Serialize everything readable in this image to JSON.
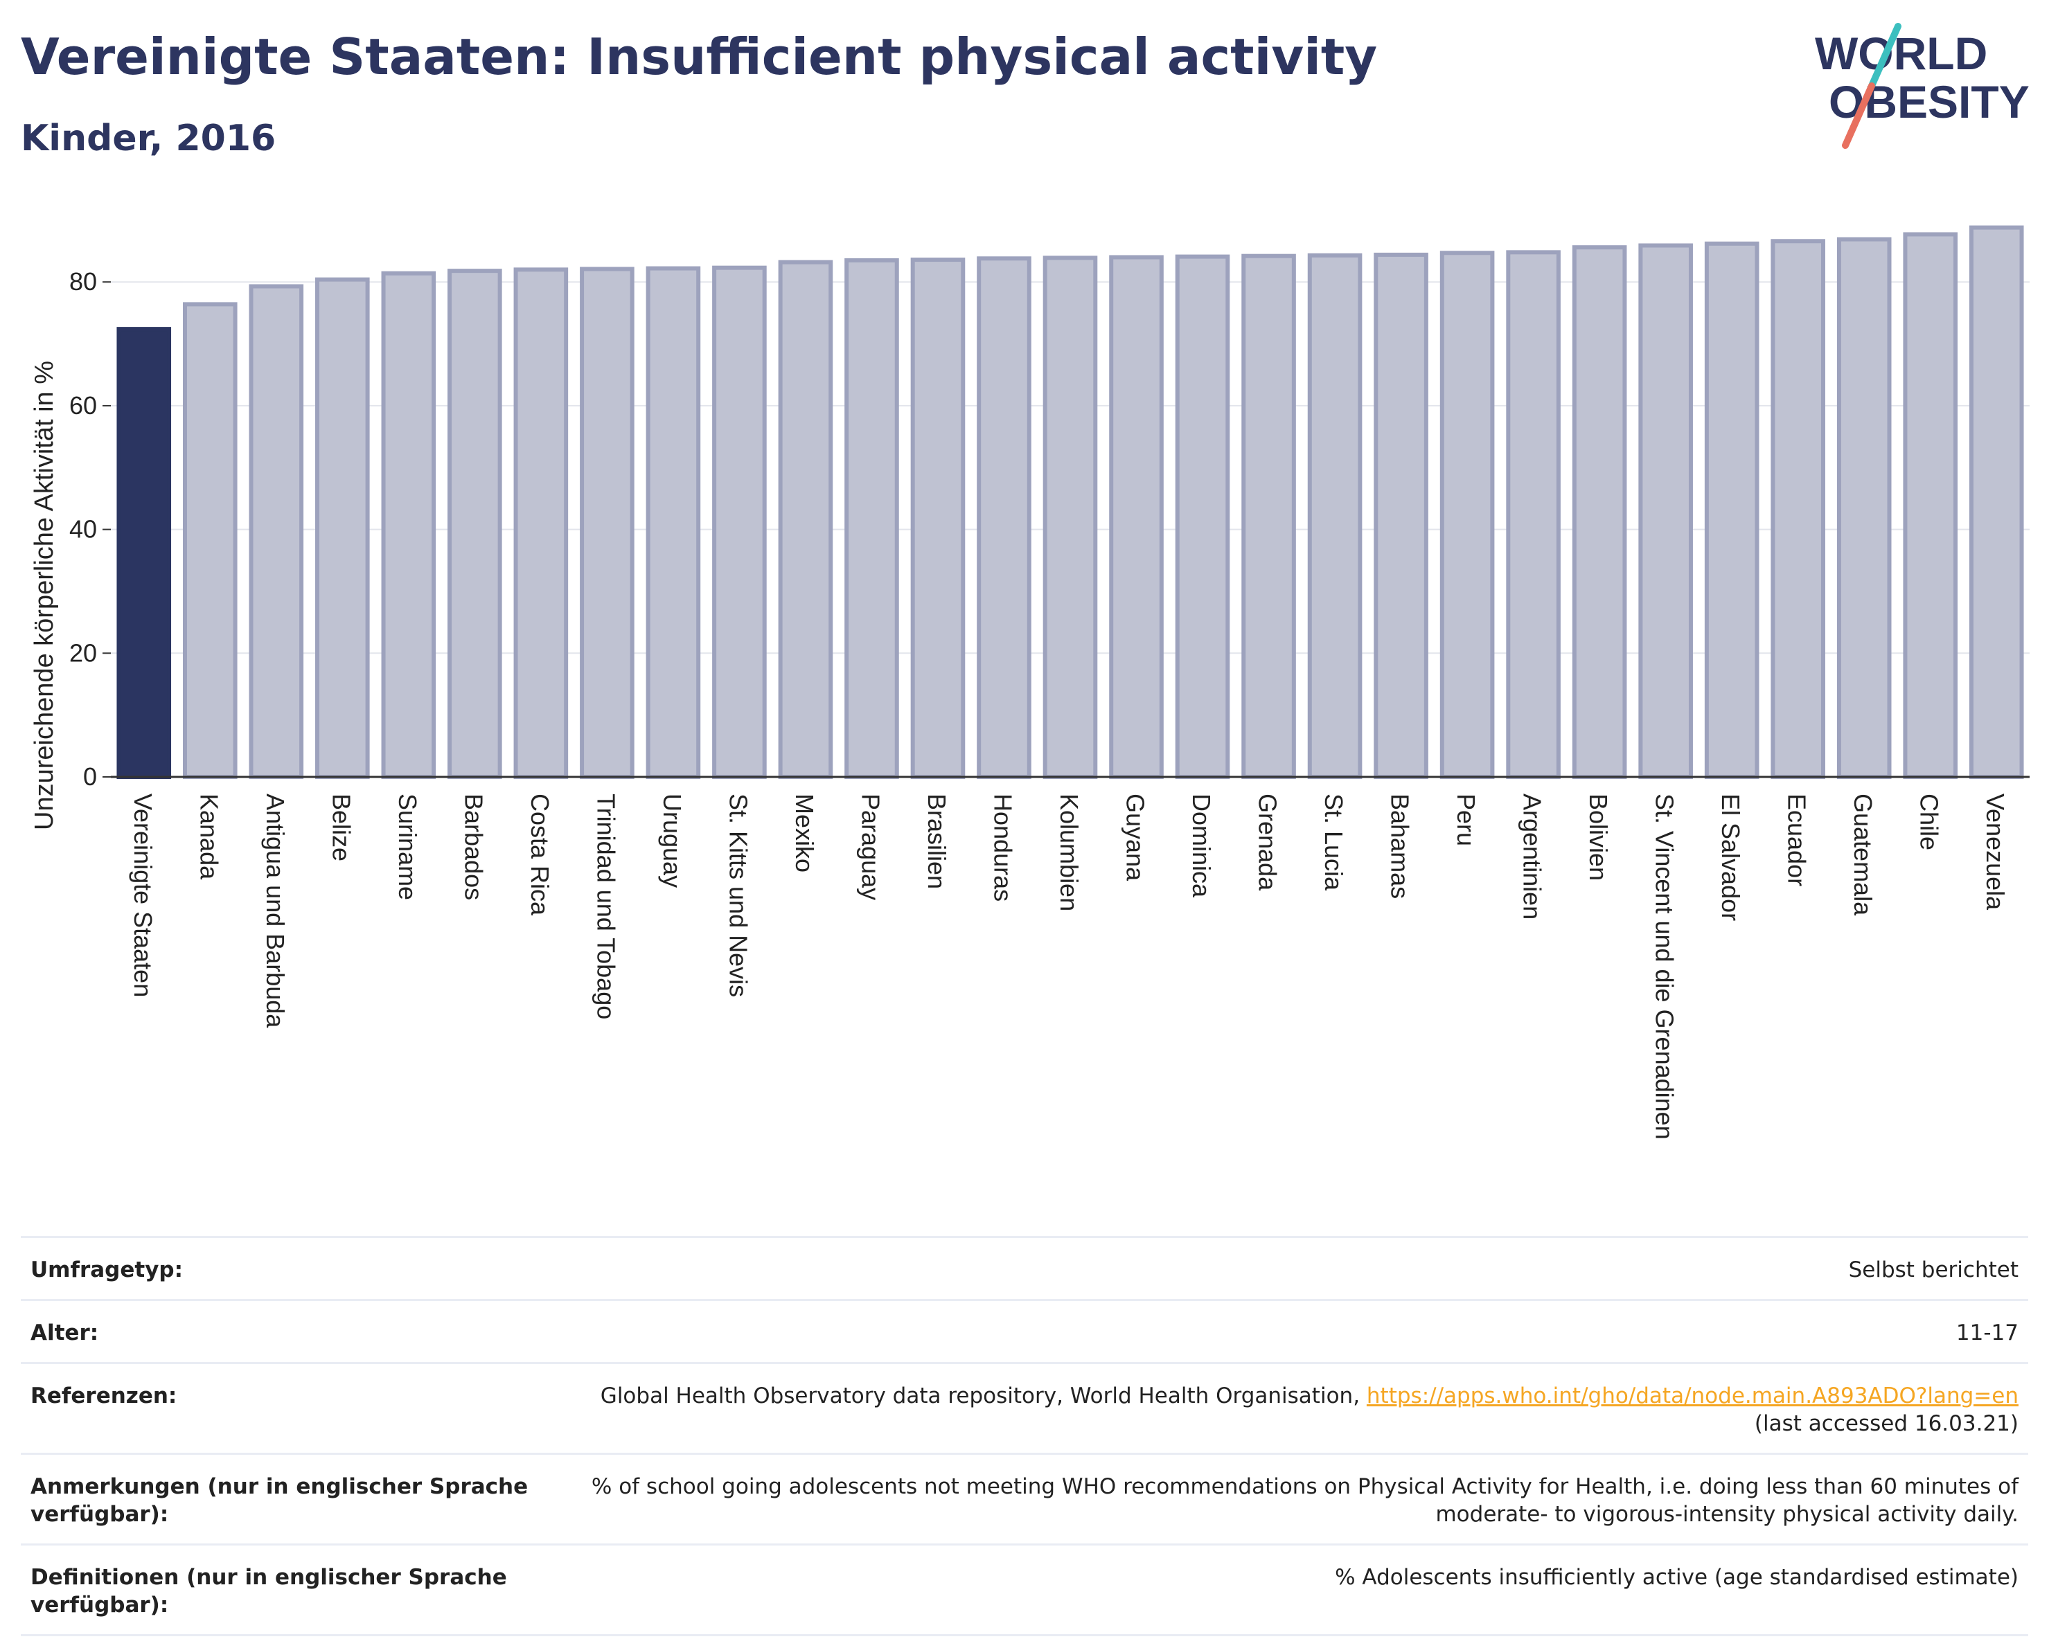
{
  "header": {
    "title": "Vereinigte Staaten: Insufficient physical activity",
    "subtitle": "Kinder, 2016"
  },
  "logo": {
    "line1": "WORLD",
    "line2": "OBESITY"
  },
  "colors": {
    "highlight": "#2b3561",
    "bar_fill": "#bfc2d2",
    "bar_stroke": "#9da2bd",
    "text_dark": "#2d3560",
    "link": "#f5a623",
    "logo_teal": "#3cbfbf",
    "logo_coral": "#e8705f"
  },
  "chart_data": {
    "type": "bar",
    "ylabel": "Unzureichende körperliche Aktivität in %",
    "xlabel": "",
    "ylim": [
      0,
      92
    ],
    "yticks": [
      0,
      20,
      40,
      60,
      80
    ],
    "grid": true,
    "highlight_category": "Vereinigte Staaten",
    "categories": [
      "Vereinigte Staaten",
      "Kanada",
      "Antigua und Barbuda",
      "Belize",
      "Suriname",
      "Barbados",
      "Costa Rica",
      "Trinidad und Tobago",
      "Uruguay",
      "St. Kitts und Nevis",
      "Mexiko",
      "Paraguay",
      "Brasilien",
      "Honduras",
      "Kolumbien",
      "Guyana",
      "Dominica",
      "Grenada",
      "St. Lucia",
      "Bahamas",
      "Peru",
      "Argentinien",
      "Bolivien",
      "St. Vincent und die Grenadinen",
      "El Salvador",
      "Ecuador",
      "Guatemala",
      "Chile",
      "Venezuela"
    ],
    "values": [
      72.4,
      76.4,
      79.3,
      80.4,
      81.4,
      81.8,
      82.0,
      82.1,
      82.2,
      82.3,
      83.2,
      83.5,
      83.6,
      83.8,
      83.9,
      84.0,
      84.1,
      84.2,
      84.3,
      84.4,
      84.7,
      84.8,
      85.6,
      85.9,
      86.2,
      86.6,
      86.9,
      87.7,
      88.8
    ]
  },
  "info": {
    "rows": [
      {
        "label": "Umfragetyp:",
        "value": "Selbst berichtet"
      },
      {
        "label": "Alter:",
        "value": "11-17"
      },
      {
        "label": "Referenzen:",
        "value_prefix": "Global Health Observatory data repository, World Health Organisation, ",
        "link": "https://apps.who.int/gho/data/node.main.A893ADO?lang=en",
        "value_suffix": "(last accessed 16.03.21)"
      },
      {
        "label": "Anmerkungen (nur in englischer Sprache verfügbar):",
        "value": "% of school going adolescents not meeting WHO recommendations on Physical Activity for Health, i.e. doing less than 60 minutes of moderate- to vigorous-intensity physical activity daily."
      },
      {
        "label": "Definitionen (nur in englischer Sprache verfügbar):",
        "value": "% Adolescents insufficiently active (age standardised estimate)"
      }
    ]
  }
}
